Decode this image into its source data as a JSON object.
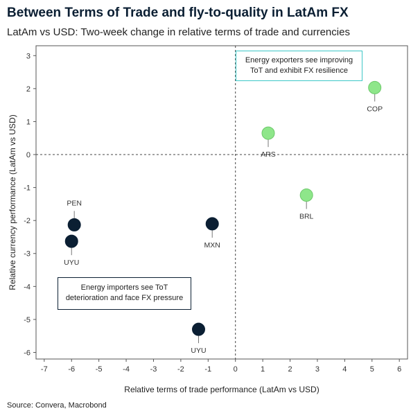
{
  "chart_data": {
    "type": "scatter",
    "title": "Between Terms of Trade and fly-to-quality in LatAm FX",
    "subtitle": "LatAm vs USD: Two-week change in relative terms of trade and currencies",
    "xlabel": "Relative terms of trade performance (LatAm vs USD)",
    "ylabel": "Relative currency performance (LatAm vs USD)",
    "xlim": [
      -7.3,
      6.3
    ],
    "ylim": [
      -6.2,
      3.3
    ],
    "xticks": [
      -7,
      -6,
      -5,
      -4,
      -3,
      -2,
      -1,
      0,
      1,
      2,
      3,
      4,
      5,
      6
    ],
    "yticks": [
      -6,
      -5,
      -4,
      -3,
      -2,
      -1,
      0,
      1,
      2,
      3
    ],
    "reference_lines": {
      "x": 0,
      "y": 0,
      "style": "dashed"
    },
    "points": [
      {
        "label": "COP",
        "x": 5.1,
        "y": 2.03,
        "color": "#8ee68a",
        "label_pos": "below"
      },
      {
        "label": "ARS",
        "x": 1.2,
        "y": 0.65,
        "color": "#8ee68a",
        "label_pos": "below"
      },
      {
        "label": "BRL",
        "x": 2.6,
        "y": -1.23,
        "color": "#8ee68a",
        "label_pos": "below"
      },
      {
        "label": "PEN",
        "x": -5.9,
        "y": -2.13,
        "color": "#0b1f33",
        "label_pos": "above"
      },
      {
        "label": "UYU",
        "x": -6.0,
        "y": -2.63,
        "color": "#0b1f33",
        "label_pos": "below"
      },
      {
        "label": "MXN",
        "x": -0.85,
        "y": -2.1,
        "color": "#0b1f33",
        "label_pos": "below"
      },
      {
        "label": "UYU",
        "x": -1.35,
        "y": -5.3,
        "color": "#0b1f33",
        "label_pos": "below"
      }
    ],
    "annotations": {
      "top_right": [
        "Energy exporters see improving",
        "ToT and exhibit FX resilience"
      ],
      "bottom_left": [
        "Energy importers see ToT",
        "deterioration and face FX pressure"
      ]
    }
  },
  "source": "Source: Convera, Macrobond"
}
